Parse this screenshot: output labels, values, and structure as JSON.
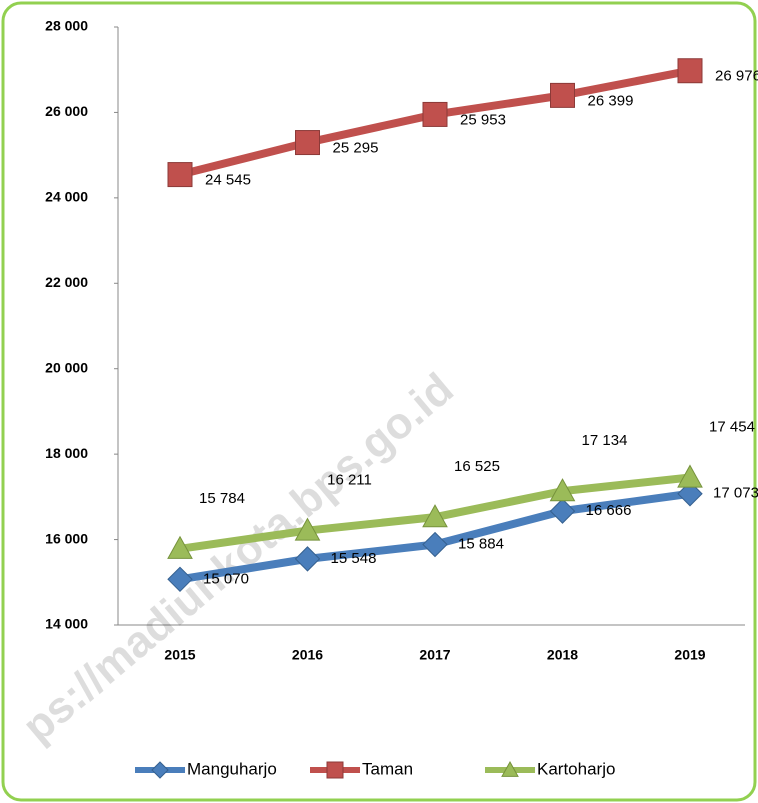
{
  "chart_data": {
    "type": "line",
    "categories": [
      "2015",
      "2016",
      "2017",
      "2018",
      "2019"
    ],
    "series": [
      {
        "name": "Manguharjo",
        "color": "#4a7ebb",
        "marker": "diamond",
        "values": [
          15070,
          15548,
          15884,
          16666,
          17073
        ],
        "value_labels": [
          "15 070",
          "15 548",
          "15 884",
          "16 666",
          "17 073"
        ]
      },
      {
        "name": "Taman",
        "color": "#c0504d",
        "marker": "square",
        "values": [
          24545,
          25295,
          25953,
          26399,
          26976
        ],
        "value_labels": [
          "24 545",
          "25 295",
          "25 953",
          "26 399",
          "26 976"
        ]
      },
      {
        "name": "Kartoharjo",
        "color": "#9bbb59",
        "marker": "triangle",
        "values": [
          15784,
          16211,
          16525,
          17134,
          17454
        ],
        "value_labels": [
          "15 784",
          "16 211",
          "16 525",
          "17 134",
          "17 454"
        ]
      }
    ],
    "ylim": [
      14000,
      28000
    ],
    "yticks": [
      {
        "value": 14000,
        "label": "14 000"
      },
      {
        "value": 16000,
        "label": "16 000"
      },
      {
        "value": 18000,
        "label": "18 000"
      },
      {
        "value": 20000,
        "label": "20 000"
      },
      {
        "value": 22000,
        "label": "22 000"
      },
      {
        "value": 24000,
        "label": "24 000"
      },
      {
        "value": 26000,
        "label": "26 000"
      },
      {
        "value": 28000,
        "label": "28 000"
      }
    ],
    "grid": false,
    "legend": "bottom",
    "watermark": "ps://madiunkota.bps.go.id"
  }
}
